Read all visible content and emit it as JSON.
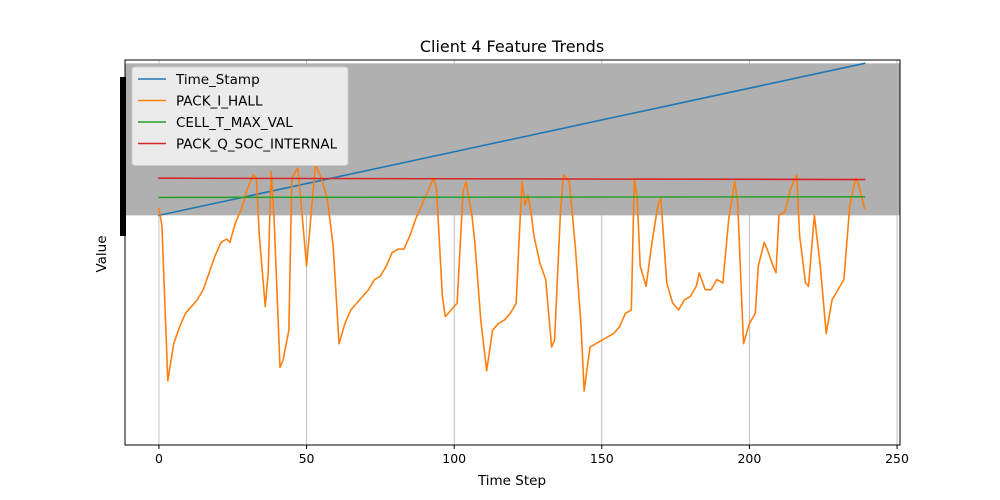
{
  "chart_data": {
    "type": "line",
    "title": "Client 4 Feature Trends",
    "xlabel": "Time Step",
    "ylabel": "Value",
    "xlim": [
      -11.5,
      251
    ],
    "ylim": [
      -0.13,
      1.01
    ],
    "xticks": [
      0,
      50,
      100,
      150,
      200,
      250
    ],
    "grid": "vertical",
    "legend_position": "top-left",
    "band": {
      "y0": 0.55,
      "y1": 1.0,
      "color": "#b0b0b0"
    },
    "series": [
      {
        "name": "Time_Stamp",
        "color": "#1f77b4",
        "x": [
          0,
          239
        ],
        "y": [
          0.55,
          1.0
        ]
      },
      {
        "name": "PACK_I_HALL",
        "color": "#ff7f0e",
        "x": [
          0,
          1,
          3,
          5,
          7,
          9,
          11,
          13,
          15,
          17,
          19,
          21,
          23,
          24,
          26,
          28,
          30,
          32,
          33,
          34,
          36,
          37,
          38,
          39,
          41,
          42,
          44,
          45,
          47,
          48,
          50,
          51,
          53,
          55,
          57,
          59,
          61,
          63,
          65,
          67,
          69,
          71,
          73,
          75,
          77,
          79,
          81,
          83,
          85,
          87,
          89,
          91,
          93,
          94,
          96,
          97,
          99,
          101,
          103,
          104,
          106,
          107,
          109,
          111,
          113,
          115,
          117,
          119,
          121,
          122,
          123,
          124,
          125,
          126,
          127,
          129,
          131,
          133,
          134,
          136,
          137,
          139,
          141,
          143,
          144,
          146,
          148,
          150,
          152,
          154,
          156,
          158,
          160,
          161,
          162,
          163,
          165,
          167,
          169,
          170,
          172,
          174,
          176,
          178,
          180,
          182,
          183,
          185,
          187,
          189,
          191,
          193,
          195,
          196,
          198,
          200,
          202,
          203,
          205,
          206,
          208,
          209,
          210,
          212,
          214,
          216,
          217,
          219,
          220,
          222,
          224,
          226,
          228,
          230,
          232,
          234,
          235,
          236,
          237,
          239
        ],
        "y": [
          0.57,
          0.52,
          0.06,
          0.17,
          0.22,
          0.26,
          0.28,
          0.3,
          0.33,
          0.38,
          0.43,
          0.47,
          0.48,
          0.47,
          0.53,
          0.57,
          0.63,
          0.67,
          0.66,
          0.49,
          0.28,
          0.38,
          0.68,
          0.54,
          0.1,
          0.12,
          0.21,
          0.66,
          0.69,
          0.6,
          0.4,
          0.5,
          0.7,
          0.66,
          0.6,
          0.46,
          0.17,
          0.23,
          0.27,
          0.29,
          0.31,
          0.33,
          0.36,
          0.37,
          0.4,
          0.44,
          0.45,
          0.45,
          0.49,
          0.54,
          0.58,
          0.62,
          0.66,
          0.63,
          0.31,
          0.25,
          0.27,
          0.29,
          0.62,
          0.65,
          0.55,
          0.47,
          0.24,
          0.09,
          0.21,
          0.23,
          0.24,
          0.26,
          0.29,
          0.48,
          0.65,
          0.58,
          0.61,
          0.56,
          0.49,
          0.41,
          0.36,
          0.16,
          0.18,
          0.56,
          0.67,
          0.65,
          0.46,
          0.22,
          0.03,
          0.16,
          0.17,
          0.18,
          0.19,
          0.2,
          0.22,
          0.26,
          0.27,
          0.66,
          0.6,
          0.4,
          0.34,
          0.47,
          0.58,
          0.6,
          0.35,
          0.29,
          0.27,
          0.3,
          0.31,
          0.34,
          0.38,
          0.33,
          0.33,
          0.36,
          0.35,
          0.54,
          0.65,
          0.59,
          0.17,
          0.23,
          0.26,
          0.4,
          0.47,
          0.45,
          0.4,
          0.38,
          0.55,
          0.56,
          0.63,
          0.67,
          0.49,
          0.35,
          0.34,
          0.55,
          0.4,
          0.2,
          0.3,
          0.33,
          0.36,
          0.58,
          0.62,
          0.66,
          0.64,
          0.57
        ]
      },
      {
        "name": "CELL_T_MAX_VAL",
        "color": "#2ca02c",
        "x": [
          0,
          239
        ],
        "y": [
          0.603,
          0.605
        ]
      },
      {
        "name": "PACK_Q_SOC_INTERNAL",
        "color": "#d62728",
        "x": [
          0,
          239
        ],
        "y": [
          0.66,
          0.656
        ]
      }
    ]
  }
}
